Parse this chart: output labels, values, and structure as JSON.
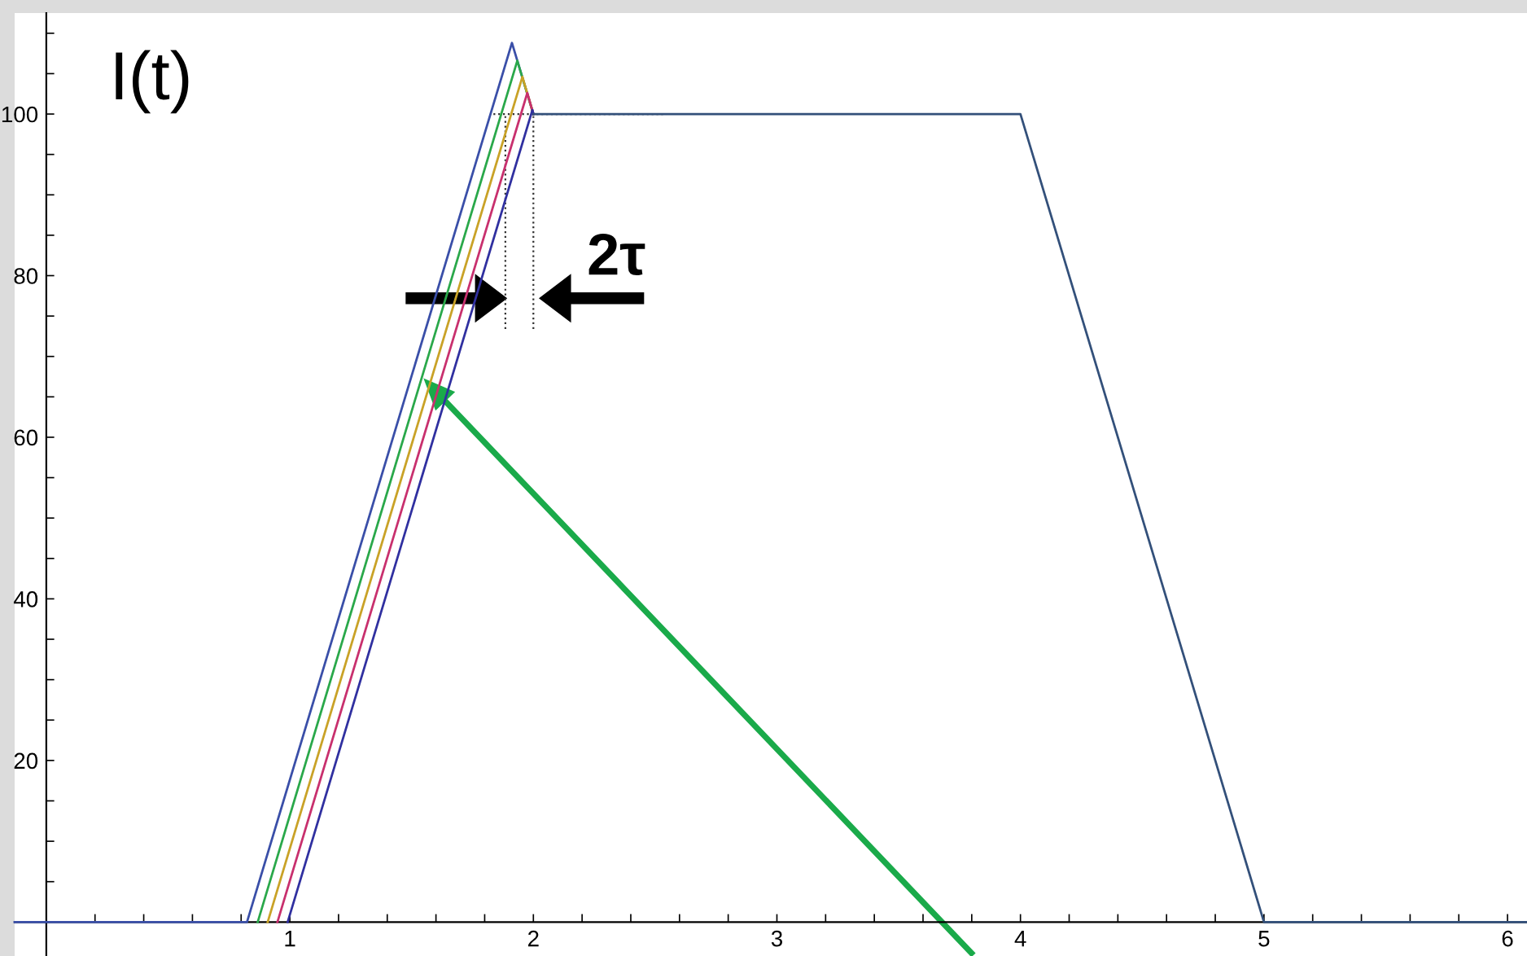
{
  "chart_data": {
    "type": "line",
    "ylabel": "I(t)",
    "annotations": [
      "2τ"
    ],
    "series": [
      {
        "color": "#3a4fa8",
        "x": [
          -0.13,
          0.824,
          1.912,
          2.0
        ],
        "values": [
          0,
          0,
          108.8,
          100
        ]
      },
      {
        "color": "#2aa84a",
        "x": [
          0.868,
          1.934,
          2.0
        ],
        "values": [
          0,
          106.6,
          100
        ]
      },
      {
        "color": "#c9a227",
        "x": [
          0.909,
          1.955,
          2.0
        ],
        "values": [
          0,
          104.6,
          100
        ]
      },
      {
        "color": "#c8306e",
        "x": [
          0.949,
          1.975,
          2.0
        ],
        "values": [
          0,
          102.6,
          100
        ]
      },
      {
        "color": "#3030a0",
        "x": [
          0.991,
          1.996,
          2.0
        ],
        "values": [
          0,
          100.5,
          100
        ]
      },
      {
        "color": "#33507a",
        "x": [
          2.0,
          4.0,
          5.0,
          6.08
        ],
        "values": [
          100,
          100,
          0,
          0
        ]
      }
    ],
    "xlim": [
      -0.13,
      6.08
    ],
    "ylim": [
      -4.2,
      112.5
    ],
    "xticks": [
      {
        "value": 0.2,
        "label": null
      },
      {
        "value": 0.4,
        "label": null
      },
      {
        "value": 0.6,
        "label": null
      },
      {
        "value": 0.8,
        "label": null
      },
      1,
      {
        "value": 1.2,
        "label": null
      },
      {
        "value": 1.4,
        "label": null
      },
      {
        "value": 1.6,
        "label": null
      },
      {
        "value": 1.8,
        "label": null
      },
      2,
      {
        "value": 2.2,
        "label": null
      },
      {
        "value": 2.4,
        "label": null
      },
      {
        "value": 2.6,
        "label": null
      },
      {
        "value": 2.8,
        "label": null
      },
      3,
      {
        "value": 3.2,
        "label": null
      },
      {
        "value": 3.4,
        "label": null
      },
      {
        "value": 3.6,
        "label": null
      },
      {
        "value": 3.8,
        "label": null
      },
      4,
      {
        "value": 4.2,
        "label": null
      },
      {
        "value": 4.4,
        "label": null
      },
      {
        "value": 4.6,
        "label": null
      },
      {
        "value": 4.8,
        "label": null
      },
      5,
      {
        "value": 5.2,
        "label": null
      },
      {
        "value": 5.4,
        "label": null
      },
      {
        "value": 5.6,
        "label": null
      },
      {
        "value": 5.8,
        "label": null
      },
      6
    ],
    "yticks": [
      {
        "value": 5,
        "label": null
      },
      {
        "value": 10,
        "label": null
      },
      {
        "value": 15,
        "label": null
      },
      20,
      {
        "value": 25,
        "label": null
      },
      {
        "value": 30,
        "label": null
      },
      {
        "value": 35,
        "label": null
      },
      40,
      {
        "value": 45,
        "label": null
      },
      {
        "value": 50,
        "label": null
      },
      {
        "value": 55,
        "label": null
      },
      60,
      {
        "value": 65,
        "label": null
      },
      {
        "value": 70,
        "label": null
      },
      {
        "value": 75,
        "label": null
      },
      80,
      {
        "value": 85,
        "label": null
      },
      {
        "value": 90,
        "label": null
      },
      {
        "value": 95,
        "label": null
      },
      100,
      {
        "value": 105,
        "label": null
      },
      {
        "value": 110,
        "label": null
      }
    ],
    "marker": "none",
    "line_style": "solid"
  }
}
